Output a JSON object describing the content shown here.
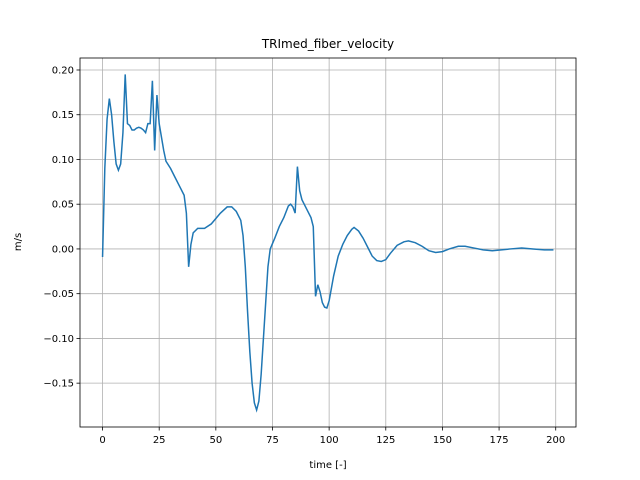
{
  "chart_data": {
    "type": "line",
    "title": "TRImed_fiber_velocity",
    "x_label": "time [-]",
    "y_label": "m/s",
    "x": [
      0,
      1,
      2,
      3,
      4,
      5,
      6,
      7,
      8,
      9,
      10,
      11,
      12,
      13,
      14,
      15,
      16,
      17,
      18,
      19,
      20,
      21,
      22,
      23,
      24,
      25,
      26,
      27,
      28,
      30,
      32,
      34,
      36,
      37,
      38,
      39,
      40,
      42,
      45,
      48,
      52,
      55,
      57,
      59,
      61,
      62,
      63,
      64,
      65,
      66,
      67,
      68,
      69,
      70,
      71,
      72,
      73,
      74,
      76,
      78,
      80,
      82,
      83,
      84,
      85,
      86,
      87,
      88,
      90,
      92,
      93,
      94,
      95,
      96,
      97,
      98,
      99,
      100,
      102,
      104,
      106,
      108,
      110,
      111,
      113,
      115,
      117,
      119,
      121,
      123,
      125,
      127,
      130,
      133,
      135,
      138,
      141,
      144,
      147,
      150,
      153,
      157,
      160,
      164,
      168,
      172,
      176,
      180,
      185,
      190,
      195,
      199
    ],
    "series": [
      {
        "name": "velocity",
        "color": "#1f77b4",
        "values": [
          -0.009,
          0.09,
          0.145,
          0.168,
          0.15,
          0.12,
          0.095,
          0.088,
          0.095,
          0.13,
          0.195,
          0.14,
          0.138,
          0.133,
          0.133,
          0.135,
          0.136,
          0.135,
          0.133,
          0.13,
          0.14,
          0.14,
          0.188,
          0.11,
          0.172,
          0.14,
          0.125,
          0.11,
          0.098,
          0.09,
          0.08,
          0.07,
          0.06,
          0.04,
          -0.02,
          0.005,
          0.018,
          0.023,
          0.023,
          0.028,
          0.04,
          0.047,
          0.047,
          0.042,
          0.032,
          0.015,
          -0.02,
          -0.07,
          -0.115,
          -0.15,
          -0.172,
          -0.18,
          -0.17,
          -0.14,
          -0.1,
          -0.06,
          -0.02,
          0.0,
          0.012,
          0.025,
          0.035,
          0.048,
          0.05,
          0.047,
          0.04,
          0.092,
          0.065,
          0.055,
          0.045,
          0.035,
          0.025,
          -0.053,
          -0.04,
          -0.048,
          -0.06,
          -0.065,
          -0.066,
          -0.058,
          -0.03,
          -0.008,
          0.005,
          0.015,
          0.022,
          0.024,
          0.02,
          0.012,
          0.002,
          -0.008,
          -0.013,
          -0.014,
          -0.012,
          -0.005,
          0.004,
          0.008,
          0.009,
          0.007,
          0.003,
          -0.002,
          -0.004,
          -0.003,
          0.0,
          0.003,
          0.003,
          0.001,
          -0.001,
          -0.002,
          -0.001,
          0.0,
          0.001,
          0.0,
          -0.001,
          -0.001
        ]
      }
    ],
    "xlim": [
      -9.95,
      208.95
    ],
    "ylim": [
      -0.199,
      0.2134
    ],
    "xticks": [
      0,
      25,
      50,
      75,
      100,
      125,
      150,
      175,
      200
    ],
    "yticks": [
      {
        "value": -0.15,
        "label": "−0.15"
      },
      {
        "value": -0.1,
        "label": "−0.10"
      },
      {
        "value": -0.05,
        "label": "−0.05"
      },
      {
        "value": 0,
        "label": "0.00"
      },
      {
        "value": 0.05,
        "label": "0.05"
      },
      {
        "value": 0.1,
        "label": "0.10"
      },
      {
        "value": 0.15,
        "label": "0.15"
      },
      {
        "value": 0.2,
        "label": "0.20"
      }
    ],
    "grid": true
  }
}
